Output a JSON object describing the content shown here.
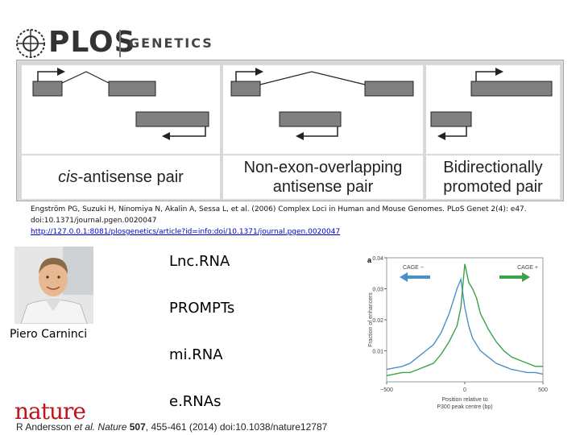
{
  "header": {
    "brand": "PLOS",
    "journal": "GENETICS"
  },
  "figure": {
    "labels": {
      "cis_prefix": "cis",
      "cis_rest": "-antisense pair",
      "non_exon_line1": "Non-exon-overlapping",
      "non_exon_line2": "antisense pair",
      "bidir_line1": "Bidirectionally",
      "bidir_line2": "promoted pair"
    }
  },
  "citation": {
    "text": "Engström PG, Suzuki H, Ninomiya N, Akalin A, Sessa L, et al. (2006) Complex Loci in Human and Mouse Genomes. PLoS Genet 2(4): e47. doi:10.1371/journal.pgen.0020047",
    "url": "http://127.0.0.1:8081/plosgenetics/article?id=info:doi/10.1371/journal.pgen.0020047"
  },
  "person": {
    "caption": "Piero Carninci"
  },
  "rna_types": [
    "Lnc.RNA",
    "PROMPTs",
    "mi.RNA",
    "e.RNAs"
  ],
  "footer": {
    "nature_logo": "nature",
    "ref_prefix": "R Andersson ",
    "ref_italic": "et al. Nature",
    "ref_volume": " 507",
    "ref_rest": ", 455-461 (2014) doi:10.1038/nature12787"
  },
  "colors": {
    "cage_minus": "#4a90c8",
    "cage_plus": "#3aa34a",
    "nature_red": "#c0141b"
  },
  "chart_data": {
    "type": "line",
    "panel_label": "a",
    "xlabel": "Position relative to P300 peak centre (bp)",
    "ylabel": "Fraction of enhancers",
    "xlim": [
      -500,
      500
    ],
    "ylim": [
      0,
      0.04
    ],
    "xticks": [
      -500,
      0,
      500
    ],
    "yticks": [
      0.01,
      0.02,
      0.03,
      0.04
    ],
    "ytick_labels": [
      "0.01",
      "0.02",
      "0.03",
      "0.04"
    ],
    "annotations": [
      "CAGE −",
      "CAGE +"
    ],
    "series": [
      {
        "name": "CAGE −",
        "x": [
          -500,
          -450,
          -400,
          -350,
          -300,
          -250,
          -200,
          -150,
          -100,
          -75,
          -50,
          -25,
          0,
          25,
          50,
          100,
          150,
          200,
          250,
          300,
          350,
          400,
          450,
          500
        ],
        "values": [
          0.004,
          0.0045,
          0.005,
          0.006,
          0.008,
          0.01,
          0.012,
          0.016,
          0.022,
          0.026,
          0.03,
          0.033,
          0.024,
          0.018,
          0.014,
          0.01,
          0.008,
          0.006,
          0.005,
          0.004,
          0.0035,
          0.003,
          0.003,
          0.0025
        ]
      },
      {
        "name": "CAGE +",
        "x": [
          -500,
          -450,
          -400,
          -350,
          -300,
          -250,
          -200,
          -150,
          -100,
          -50,
          -25,
          0,
          25,
          50,
          75,
          100,
          150,
          200,
          250,
          300,
          350,
          400,
          450,
          500
        ],
        "values": [
          0.002,
          0.0025,
          0.003,
          0.003,
          0.004,
          0.005,
          0.006,
          0.009,
          0.013,
          0.018,
          0.024,
          0.038,
          0.032,
          0.03,
          0.027,
          0.022,
          0.017,
          0.013,
          0.01,
          0.008,
          0.007,
          0.006,
          0.005,
          0.005
        ]
      }
    ]
  }
}
